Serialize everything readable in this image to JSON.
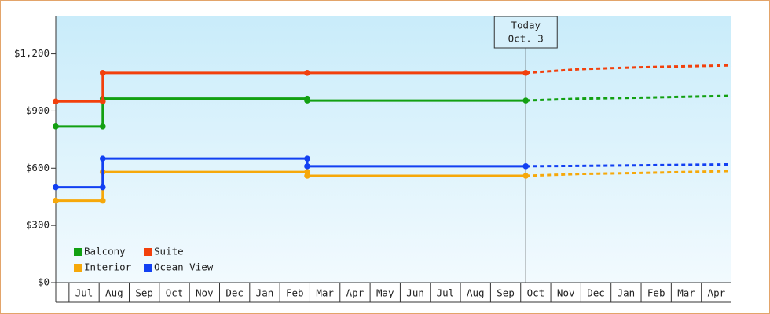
{
  "chart_data": {
    "type": "step-line",
    "xlim": [
      0.56,
      23
    ],
    "ylim": [
      0,
      1400
    ],
    "yticks": [
      {
        "value": 0,
        "label": "$0"
      },
      {
        "value": 300,
        "label": "$300"
      },
      {
        "value": 600,
        "label": "$600"
      },
      {
        "value": 900,
        "label": "$900"
      },
      {
        "value": 1200,
        "label": "$1,200"
      }
    ],
    "xticks": [
      {
        "value": 1.5,
        "label": "Jul"
      },
      {
        "value": 2.5,
        "label": "Aug"
      },
      {
        "value": 3.5,
        "label": "Sep"
      },
      {
        "value": 4.5,
        "label": "Oct"
      },
      {
        "value": 5.5,
        "label": "Nov"
      },
      {
        "value": 6.5,
        "label": "Dec"
      },
      {
        "value": 7.5,
        "label": "Jan"
      },
      {
        "value": 8.5,
        "label": "Feb"
      },
      {
        "value": 9.5,
        "label": "Mar"
      },
      {
        "value": 10.5,
        "label": "Apr"
      },
      {
        "value": 11.5,
        "label": "May"
      },
      {
        "value": 12.5,
        "label": "Jun"
      },
      {
        "value": 13.5,
        "label": "Jul"
      },
      {
        "value": 14.5,
        "label": "Aug"
      },
      {
        "value": 15.5,
        "label": "Sep"
      },
      {
        "value": 16.5,
        "label": "Oct"
      },
      {
        "value": 17.5,
        "label": "Nov"
      },
      {
        "value": 18.5,
        "label": "Dec"
      },
      {
        "value": 19.5,
        "label": "Jan"
      },
      {
        "value": 20.5,
        "label": "Feb"
      },
      {
        "value": 21.5,
        "label": "Mar"
      },
      {
        "value": 22.5,
        "label": "Apr"
      }
    ],
    "annotation": {
      "lines": [
        "Today",
        "Oct. 3"
      ],
      "x": 16.17
    },
    "series": [
      {
        "name": "Balcony",
        "color": "#12a012",
        "x": [
          0.56,
          2.12,
          2.12,
          8.91,
          8.91,
          16.17
        ],
        "values": [
          820,
          820,
          965,
          965,
          955,
          955
        ],
        "forecast_x": [
          16.17,
          18,
          20,
          23
        ],
        "forecast_values": [
          955,
          965,
          970,
          980
        ]
      },
      {
        "name": "Suite",
        "color": "#f2400c",
        "x": [
          0.56,
          2.12,
          2.12,
          8.91,
          16.17
        ],
        "values": [
          950,
          950,
          1100,
          1100,
          1100
        ],
        "forecast_x": [
          16.17,
          18,
          20,
          23
        ],
        "forecast_values": [
          1100,
          1120,
          1130,
          1140
        ]
      },
      {
        "name": "Interior",
        "color": "#f6a80a",
        "x": [
          0.56,
          2.12,
          2.12,
          8.91,
          8.91,
          16.17
        ],
        "values": [
          430,
          430,
          580,
          580,
          560,
          560
        ],
        "forecast_x": [
          16.17,
          18,
          20,
          23
        ],
        "forecast_values": [
          560,
          570,
          575,
          585
        ]
      },
      {
        "name": "Ocean View",
        "color": "#1240f2",
        "x": [
          0.56,
          2.12,
          2.12,
          8.91,
          8.91,
          16.17
        ],
        "values": [
          500,
          500,
          650,
          650,
          610,
          610
        ],
        "forecast_x": [
          16.17,
          18,
          20,
          23
        ],
        "forecast_values": [
          610,
          612,
          615,
          620
        ]
      }
    ]
  }
}
